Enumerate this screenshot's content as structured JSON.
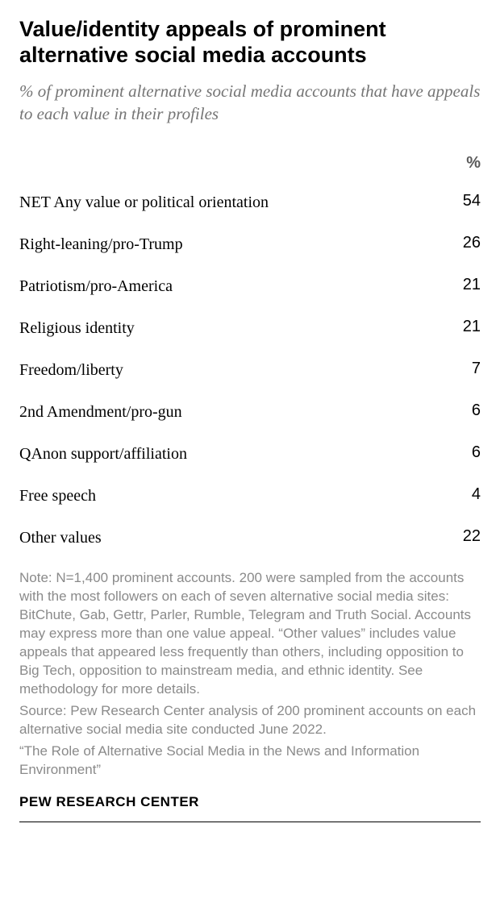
{
  "title": "Value/identity appeals of prominent alternative social media accounts",
  "subtitle": "% of prominent alternative social media accounts that have appeals to each value in their profiles",
  "table": {
    "header_label": "%",
    "rows": [
      {
        "label": "NET Any value or political orientation",
        "value": "54"
      },
      {
        "label": "Right-leaning/pro-Trump",
        "value": "26"
      },
      {
        "label": "Patriotism/pro-America",
        "value": "21"
      },
      {
        "label": "Religious identity",
        "value": "21"
      },
      {
        "label": "Freedom/liberty",
        "value": "7"
      },
      {
        "label": "2nd Amendment/pro-gun",
        "value": "6"
      },
      {
        "label": "QAnon support/affiliation",
        "value": "6"
      },
      {
        "label": "Free speech",
        "value": "4"
      },
      {
        "label": "Other values",
        "value": "22"
      }
    ]
  },
  "note": "Note: N=1,400 prominent accounts. 200 were sampled from the accounts with the most followers on  each of seven alternative social media sites: BitChute, Gab, Gettr, Parler, Rumble, Telegram and Truth Social. Accounts may express more than one value appeal. “Other values” includes value appeals that appeared less frequently than others, including opposition to Big Tech, opposition to mainstream media, and ethnic identity. See methodology for more details.",
  "source": "Source: Pew Research Center analysis of 200 prominent accounts on each alternative social media site conducted June 2022.",
  "report_title": "“The Role of Alternative Social Media in the News and Information Environment”",
  "org": "PEW RESEARCH CENTER",
  "styles": {
    "title_color": "#000000",
    "subtitle_color": "#757575",
    "note_color": "#8a8a8a",
    "background_color": "#ffffff",
    "title_fontsize": 27,
    "subtitle_fontsize": 21,
    "body_fontsize": 20,
    "note_fontsize": 17,
    "value_col_width": 62
  }
}
